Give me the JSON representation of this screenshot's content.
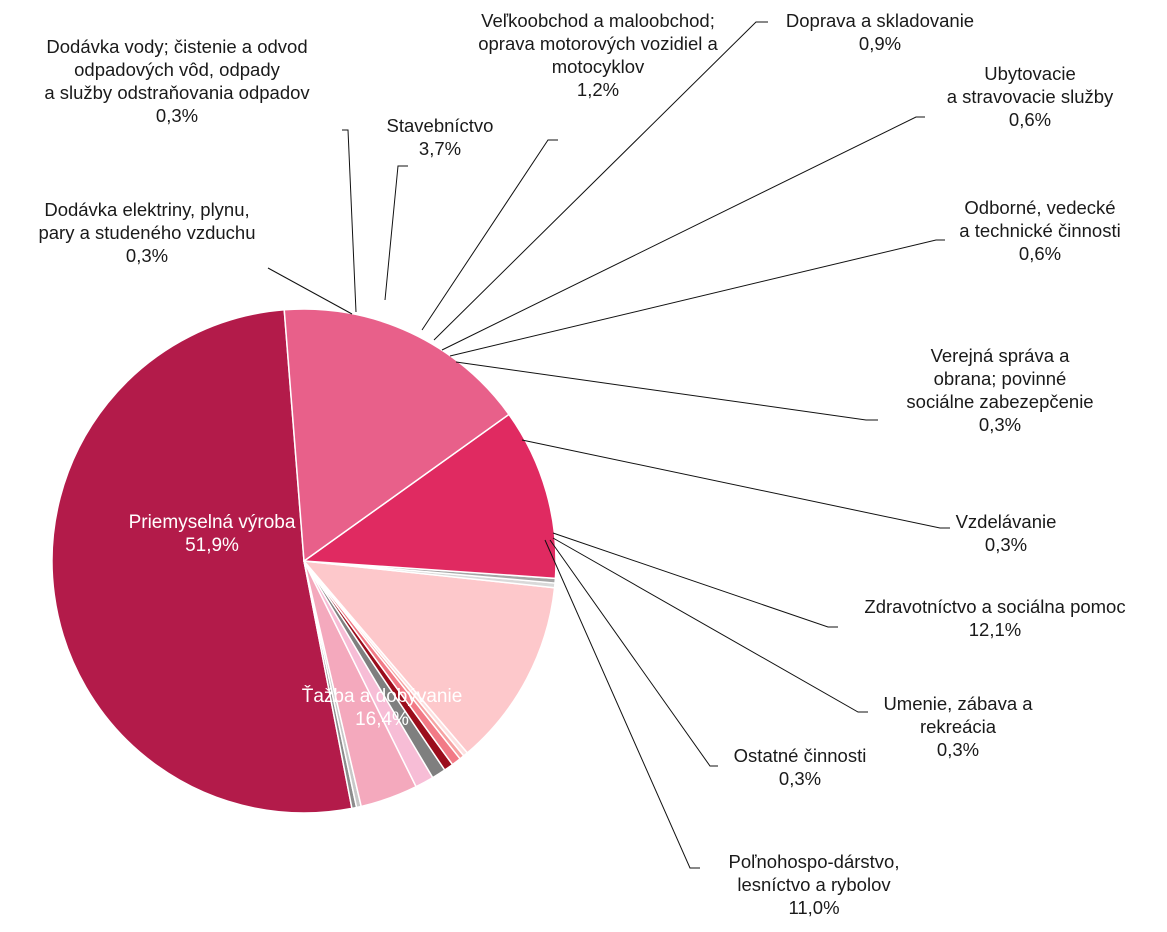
{
  "chart_data": {
    "type": "pie",
    "unit": "%",
    "slices": [
      {
        "name": "Priemyselná výroba",
        "value": 51.9,
        "value_label": "51,9%",
        "color": "#b31b4a",
        "label_lines": [
          "Priemyselná výroba",
          "51,9%"
        ]
      },
      {
        "name": "Dodávka elektriny, plynu, pary a studeného vzduchu",
        "value": 0.3,
        "value_label": "0,3%",
        "color": "#8c8c8c",
        "label_lines": [
          "Dodávka elektriny, plynu,",
          "pary a studeného vzduchu",
          "0,3%"
        ]
      },
      {
        "name": "Dodávka vody; čistenie a odvod odpadových vôd, odpady a služby odstraňovania odpadov",
        "value": 0.3,
        "value_label": "0,3%",
        "color": "#c8c8c8",
        "label_lines": [
          "Dodávka vody; čistenie a odvod",
          "odpadových vôd, odpady",
          "a služby odstraňovania odpadov",
          "0,3%"
        ]
      },
      {
        "name": "Stavebníctvo",
        "value": 3.7,
        "value_label": "3,7%",
        "color": "#f4a9bd",
        "label_lines": [
          "Stavebníctvo",
          "3,7%"
        ]
      },
      {
        "name": "Veľkoobchod a maloobchod; oprava motorových vozidiel a motocyklov",
        "value": 1.2,
        "value_label": "1,2%",
        "color": "#f7bdd6",
        "label_lines": [
          "Veľkoobchod a maloobchod;",
          "oprava motorových vozidiel a",
          "motocyklov",
          "1,2%"
        ]
      },
      {
        "name": "Doprava a skladovanie",
        "value": 0.9,
        "value_label": "0,9%",
        "color": "#7f7f7f",
        "label_lines": [
          "Doprava a skladovanie",
          "0,9%"
        ]
      },
      {
        "name": "Ubytovacie a stravovacie služby",
        "value": 0.6,
        "value_label": "0,6%",
        "color": "#9b0d1c",
        "label_lines": [
          "Ubytovacie",
          "a stravovacie služby",
          "0,6%"
        ]
      },
      {
        "name": "Odborné, vedecké a technické činnosti",
        "value": 0.6,
        "value_label": "0,6%",
        "color": "#f27a86",
        "label_lines": [
          "Odborné, vedecké",
          "a technické činnosti",
          "0,6%"
        ]
      },
      {
        "name": "Verejná správa a obrana; povinné sociálne zabezepčenie",
        "value": 0.3,
        "value_label": "0,3%",
        "color": "#f6a3a3",
        "label_lines": [
          "Verejná správa a",
          "obrana; povinné",
          "sociálne zabezepčenie",
          "0,3%"
        ]
      },
      {
        "name": "Vzdelávanie",
        "value": 0.3,
        "value_label": "0,3%",
        "color": "#fde0e0",
        "label_lines": [
          "Vzdelávanie",
          "0,3%"
        ]
      },
      {
        "name": "Zdravotníctvo a sociálna pomoc",
        "value": 12.1,
        "value_label": "12,1%",
        "color": "#fdc8cb",
        "label_lines": [
          "Zdravotníctvo a sociálna pomoc",
          "12,1%"
        ]
      },
      {
        "name": "Umenie, zábava a rekreácia",
        "value": 0.3,
        "value_label": "0,3%",
        "color": "#d9d9d9",
        "label_lines": [
          "Umenie, zábava a",
          "rekreácia",
          "0,3%"
        ]
      },
      {
        "name": "Ostatné činnosti",
        "value": 0.3,
        "value_label": "0,3%",
        "color": "#a6a6a6",
        "label_lines": [
          "Ostatné činnosti",
          "0,3%"
        ]
      },
      {
        "name": "Poľnohospo-dárstvo, lesníctvo a  rybolov",
        "value": 11.0,
        "value_label": "11,0%",
        "color": "#e02a61",
        "label_lines": [
          "Poľnohospo-dárstvo,",
          "lesníctvo a  rybolov",
          "11,0%"
        ]
      },
      {
        "name": "Ťažba a dobývanie",
        "value": 16.4,
        "value_label": "16,4%",
        "color": "#e8608a",
        "label_lines": [
          "Ťažba a dobývanie",
          "16,4%"
        ]
      }
    ],
    "inside_labels": [
      "Priemyselná výroba",
      "Ťažba a dobývanie"
    ],
    "legend": "none (labels with leader lines)"
  }
}
